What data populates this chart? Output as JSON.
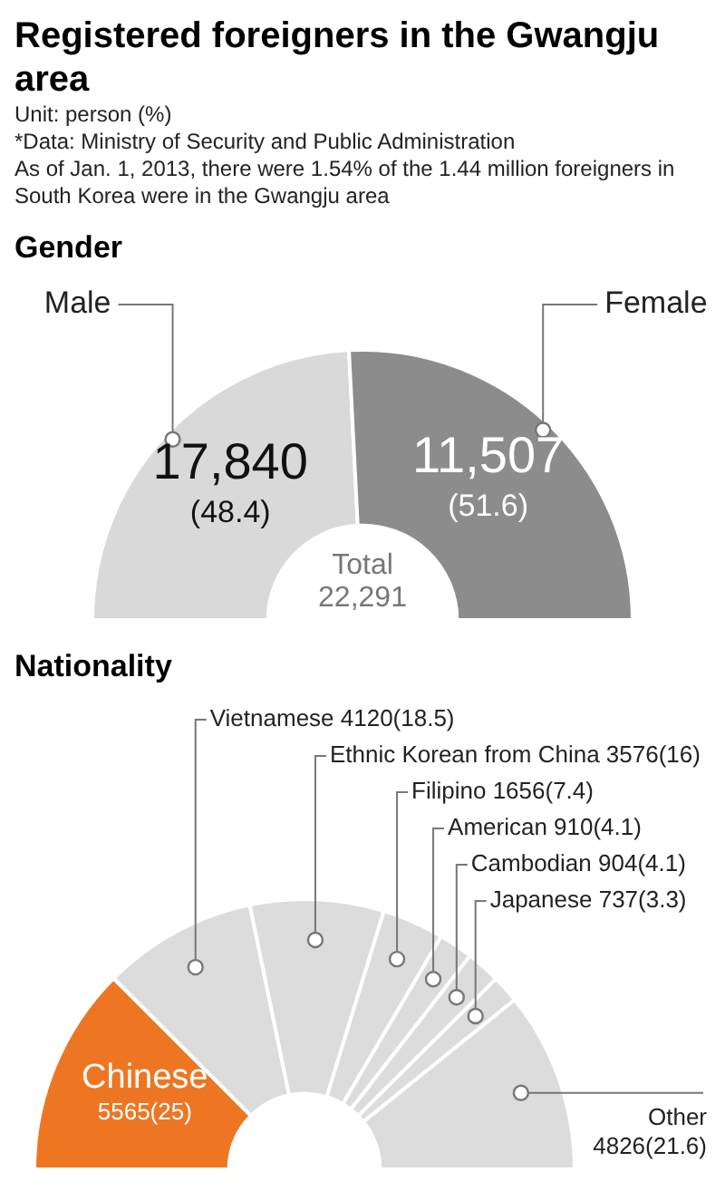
{
  "chart_data": [
    {
      "type": "other",
      "title": "Registered foreigners in the Gwangju area",
      "annotations": [
        "Unit: person (%)",
        "*Data: Ministry of Security and Public Administration",
        "As of Jan. 1, 2013, there were 1.54% of the 1.44 million foreigners in South Korea were in the Gwangju area"
      ]
    },
    {
      "type": "donut",
      "title": "Gender",
      "categories": [
        "Male",
        "Female"
      ],
      "values": [
        48.4,
        51.6
      ],
      "value_labels": [
        "17,840\n(48.4)",
        "11,507\n(51.6)"
      ],
      "colors": [
        "#d9d9d9",
        "#8c8c8c"
      ],
      "annotations": [
        "Total\n22,291"
      ]
    },
    {
      "type": "donut",
      "title": "Nationality",
      "categories": [
        "Chinese",
        "Vietnamese",
        "Ethnic Korean from China",
        "Filipino",
        "American",
        "Cambodian",
        "Japanese",
        "Other"
      ],
      "values": [
        25,
        18.5,
        16,
        7.4,
        4.1,
        4.1,
        3.3,
        21.6
      ],
      "value_labels": [
        "5565(25)",
        "4120(18.5)",
        "3576(16)",
        "1656(7.4)",
        "910(4.1)",
        "904(4.1)",
        "737(3.3)",
        "4826(21.6)"
      ],
      "colors": [
        "#ee7623",
        "#dcdcdc",
        "#dcdcdc",
        "#dcdcdc",
        "#dcdcdc",
        "#dcdcdc",
        "#dcdcdc",
        "#dcdcdc"
      ]
    }
  ]
}
